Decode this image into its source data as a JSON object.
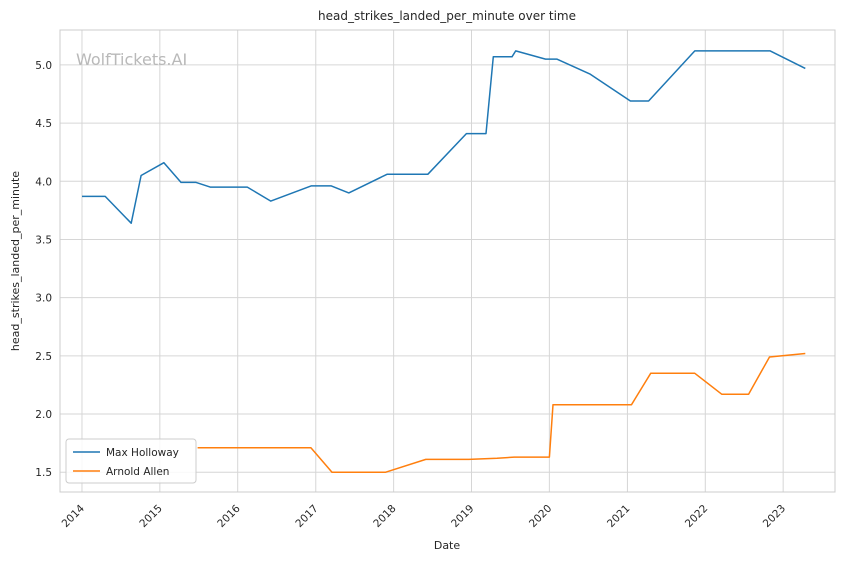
{
  "chart_data": {
    "type": "line",
    "title": "head_strikes_landed_per_minute over time",
    "xlabel": "Date",
    "ylabel": "head_strikes_landed_per_minute",
    "watermark": "WolfTickets.AI",
    "xlim": [
      "2013-09-20",
      "2023-09-01"
    ],
    "ylim": [
      1.33,
      5.3
    ],
    "x_ticks": [
      "2014",
      "2015",
      "2016",
      "2017",
      "2018",
      "2019",
      "2020",
      "2021",
      "2022",
      "2023"
    ],
    "y_ticks": [
      "1.5",
      "2.0",
      "2.5",
      "3.0",
      "3.5",
      "4.0",
      "4.5",
      "5.0"
    ],
    "grid": true,
    "legend": "lower-left",
    "series": [
      {
        "name": "Max Holloway",
        "color": "#1f77b4",
        "points": [
          [
            "2014-01-01",
            3.87
          ],
          [
            "2014-04-20",
            3.87
          ],
          [
            "2014-08-20",
            3.64
          ],
          [
            "2014-10-05",
            4.05
          ],
          [
            "2015-01-20",
            4.16
          ],
          [
            "2015-04-10",
            3.99
          ],
          [
            "2015-06-20",
            3.99
          ],
          [
            "2015-08-25",
            3.95
          ],
          [
            "2016-02-15",
            3.95
          ],
          [
            "2016-06-04",
            3.83
          ],
          [
            "2016-12-10",
            3.96
          ],
          [
            "2017-03-15",
            3.96
          ],
          [
            "2017-06-05",
            3.9
          ],
          [
            "2017-12-01",
            4.06
          ],
          [
            "2018-06-10",
            4.06
          ],
          [
            "2018-12-08",
            4.41
          ],
          [
            "2019-03-10",
            4.41
          ],
          [
            "2019-04-13",
            5.07
          ],
          [
            "2019-07-10",
            5.07
          ],
          [
            "2019-07-27",
            5.12
          ],
          [
            "2019-12-14",
            5.05
          ],
          [
            "2020-02-05",
            5.05
          ],
          [
            "2020-07-11",
            4.92
          ],
          [
            "2021-01-15",
            4.69
          ],
          [
            "2021-04-10",
            4.69
          ],
          [
            "2021-11-13",
            5.12
          ],
          [
            "2022-04-16",
            5.12
          ],
          [
            "2022-07-02",
            5.12
          ],
          [
            "2022-11-01",
            5.12
          ],
          [
            "2023-04-15",
            4.97
          ]
        ]
      },
      {
        "name": "Arnold Allen",
        "color": "#ff7f0e",
        "points": [
          [
            "2015-06-27",
            1.71
          ],
          [
            "2016-12-09",
            1.71
          ],
          [
            "2017-03-18",
            1.5
          ],
          [
            "2017-11-25",
            1.5
          ],
          [
            "2018-06-01",
            1.61
          ],
          [
            "2018-12-20",
            1.61
          ],
          [
            "2019-05-01",
            1.62
          ],
          [
            "2019-07-20",
            1.63
          ],
          [
            "2020-01-01",
            1.63
          ],
          [
            "2020-01-18",
            2.08
          ],
          [
            "2021-01-20",
            2.08
          ],
          [
            "2021-04-20",
            2.35
          ],
          [
            "2021-11-13",
            2.35
          ],
          [
            "2022-03-19",
            2.17
          ],
          [
            "2022-07-23",
            2.17
          ],
          [
            "2022-10-29",
            2.49
          ],
          [
            "2023-04-15",
            2.52
          ]
        ]
      }
    ]
  }
}
